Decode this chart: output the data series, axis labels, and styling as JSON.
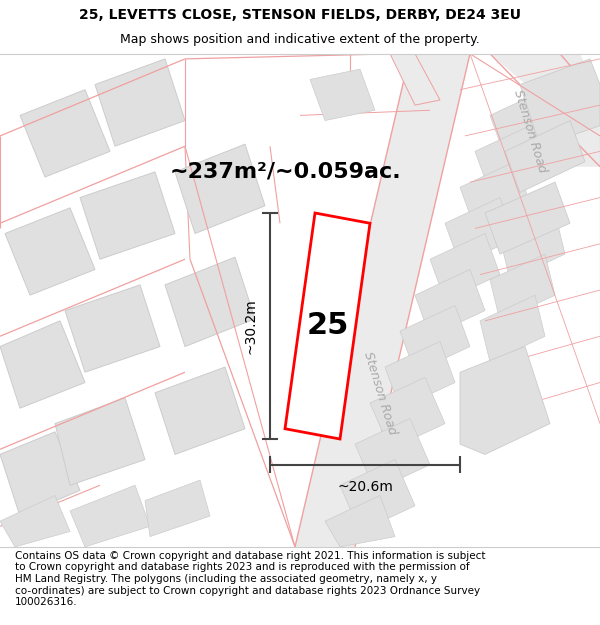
{
  "title_line1": "25, LEVETTS CLOSE, STENSON FIELDS, DERBY, DE24 3EU",
  "title_line2": "Map shows position and indicative extent of the property.",
  "footer_text": "Contains OS data © Crown copyright and database right 2021. This information is subject\nto Crown copyright and database rights 2023 and is reproduced with the permission of\nHM Land Registry. The polygons (including the associated geometry, namely x, y\nco-ordinates) are subject to Crown copyright and database rights 2023 Ordnance Survey\n100026316.",
  "area_label": "~237m²/~0.059ac.",
  "house_number": "25",
  "dim_height": "~30.2m",
  "dim_width": "~20.6m",
  "road_label_main": "Stenson Road",
  "road_label_top": "Stenson Road",
  "map_bg": "#ffffff",
  "road_fill": "#ebebeb",
  "building_fill": "#e0e0e0",
  "building_edge": "#cccccc",
  "highlight_color": "#ff0000",
  "pink_line_color": "#f0a0a0",
  "dim_line_color": "#444444",
  "road_label_color": "#aaaaaa",
  "title_fontsize": 10,
  "subtitle_fontsize": 9,
  "footer_fontsize": 7.5,
  "area_fontsize": 16,
  "dim_fontsize": 10,
  "house_fontsize": 22
}
